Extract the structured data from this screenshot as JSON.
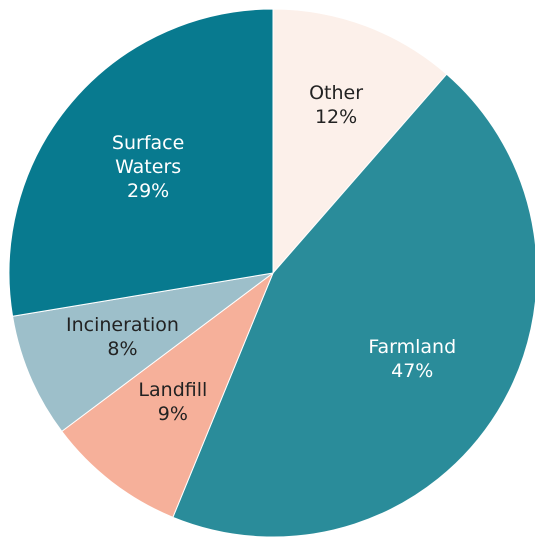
{
  "chart_data": {
    "type": "pie",
    "categories": [
      "Other",
      "Farmland",
      "Landfill",
      "Incineration",
      "Surface Waters"
    ],
    "values": [
      12,
      47,
      9,
      8,
      29
    ],
    "value_labels": [
      "12%",
      "47%",
      "9%",
      "8%",
      "29%"
    ],
    "colors": [
      "#fcf0ea",
      "#2a8c9a",
      "#f6b09a",
      "#9dbfca",
      "#087a8f"
    ]
  }
}
